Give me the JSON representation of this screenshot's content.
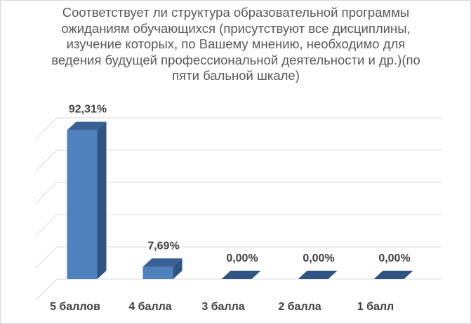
{
  "chart_data": {
    "type": "bar",
    "title": "Соответствует ли структура образовательной программы ожиданиям обучающихся (присутствуют все дисциплины, изучение которых, по Вашему мнению, необходимо для ведения будущей профессиональной деятельности и др.)(по пяти бальной шкале)",
    "categories": [
      "5 баллов",
      "4 балла",
      "3  балла",
      "2 балла",
      "1 балл"
    ],
    "values": [
      92.31,
      7.69,
      0.0,
      0.0,
      0.0
    ],
    "data_labels": [
      "92,31%",
      "7,69%",
      "0,00%",
      "0,00%",
      "0,00%"
    ],
    "ylim": [
      0,
      100
    ],
    "grid": true,
    "style": "3d-column",
    "colors": {
      "bar_front": "#4f81bd",
      "bar_side": "#2f5382",
      "bar_top": "#3a6195",
      "grid": "#d9d9d9",
      "text": "#404040",
      "title": "#595959"
    }
  }
}
